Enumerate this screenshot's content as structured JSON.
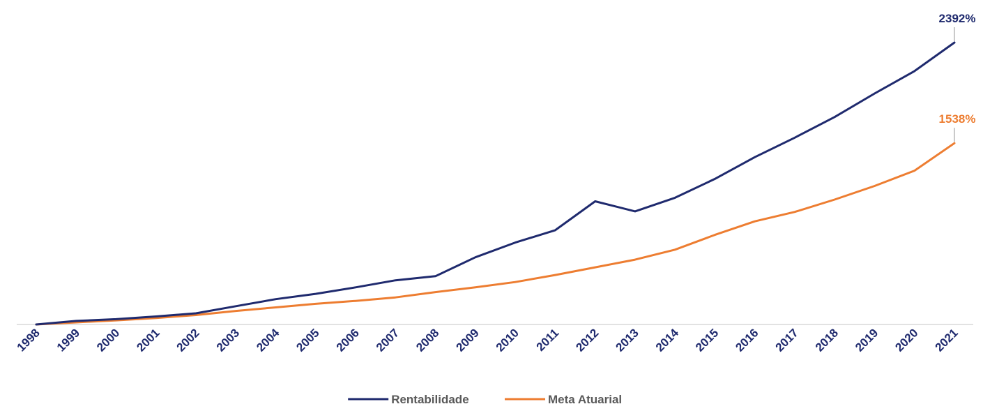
{
  "chart_data": {
    "type": "line",
    "title": "",
    "xlabel": "",
    "ylabel": "",
    "categories": [
      "1998",
      "1999",
      "2000",
      "2001",
      "2002",
      "2003",
      "2004",
      "2005",
      "2006",
      "2007",
      "2008",
      "2009",
      "2010",
      "2011",
      "2012",
      "2013",
      "2014",
      "2015",
      "2016",
      "2017",
      "2018",
      "2019",
      "2020",
      "2021"
    ],
    "ylim": [
      0,
      2392
    ],
    "grid": false,
    "legend_position": "bottom-center",
    "series": [
      {
        "name": "Rentabilidade",
        "color": "#1f2a6e",
        "values": [
          0,
          30,
          45,
          68,
          95,
          155,
          215,
          260,
          315,
          375,
          410,
          570,
          695,
          800,
          1045,
          960,
          1075,
          1235,
          1420,
          1585,
          1760,
          1960,
          2150,
          2392
        ],
        "end_label": "2392%"
      },
      {
        "name": "Meta Atuarial",
        "color": "#ed7d31",
        "values": [
          0,
          18,
          35,
          55,
          80,
          115,
          145,
          175,
          200,
          230,
          275,
          315,
          360,
          420,
          485,
          550,
          635,
          760,
          875,
          955,
          1060,
          1175,
          1305,
          1538
        ],
        "end_label": "1538%"
      }
    ]
  }
}
